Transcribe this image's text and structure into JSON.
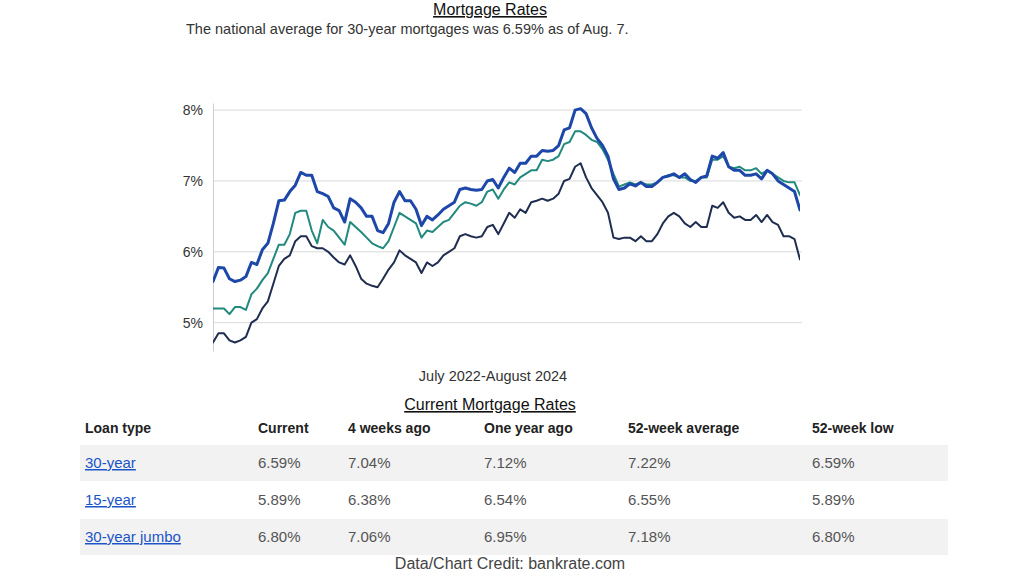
{
  "chart_data": {
    "type": "line",
    "title": "Mortgage Rates",
    "subtitle": "The national average for 30-year mortgages was 6.59% as of Aug. 7.",
    "x_label": "July 2022-August 2024",
    "categories": [
      null,
      null,
      null,
      null,
      null,
      null,
      null,
      null,
      null,
      null,
      null,
      null,
      null,
      null,
      null,
      null,
      null,
      null,
      null,
      null,
      null,
      null,
      null,
      null,
      null,
      null,
      null,
      null,
      null,
      null,
      null,
      null,
      null,
      null,
      null,
      null,
      null,
      null,
      null,
      null,
      null,
      null,
      null,
      null,
      null,
      null,
      null,
      null,
      null,
      null,
      null,
      null,
      null,
      null,
      null,
      null,
      null,
      null,
      null,
      null,
      null,
      null,
      null,
      null,
      null,
      null,
      null,
      null,
      null,
      null,
      null,
      null,
      null,
      null,
      null,
      null,
      null,
      null,
      null,
      null,
      null,
      null,
      null,
      null,
      null,
      null,
      null,
      null,
      null,
      null,
      null,
      null,
      null,
      null,
      null,
      null,
      null,
      null,
      null,
      null,
      null,
      null,
      null,
      null,
      null,
      null,
      null,
      null
    ],
    "series": [
      {
        "color": "#1d47a8",
        "values": [
          5.58,
          5.78,
          5.77,
          5.62,
          5.58,
          5.6,
          5.65,
          5.85,
          5.82,
          6.03,
          6.12,
          6.4,
          6.72,
          6.73,
          6.85,
          6.94,
          7.12,
          7.08,
          7.08,
          6.85,
          6.82,
          6.78,
          6.62,
          6.58,
          6.42,
          6.75,
          6.7,
          6.62,
          6.5,
          6.5,
          6.3,
          6.27,
          6.4,
          6.7,
          6.85,
          6.72,
          6.72,
          6.6,
          6.37,
          6.5,
          6.45,
          6.52,
          6.6,
          6.65,
          6.7,
          6.88,
          6.9,
          6.88,
          6.87,
          6.88,
          7.0,
          7.02,
          6.9,
          7.05,
          7.18,
          7.12,
          7.25,
          7.25,
          7.35,
          7.35,
          7.43,
          7.42,
          7.43,
          7.5,
          7.72,
          7.75,
          8.0,
          8.02,
          7.95,
          7.75,
          7.6,
          7.5,
          7.35,
          7.03,
          6.88,
          6.9,
          6.96,
          6.93,
          6.98,
          6.92,
          6.92,
          6.98,
          7.05,
          7.07,
          7.1,
          7.05,
          7.1,
          7.02,
          6.98,
          7.05,
          7.07,
          7.35,
          7.32,
          7.4,
          7.2,
          7.15,
          7.15,
          7.08,
          7.08,
          7.1,
          7.03,
          7.15,
          7.1,
          7.0,
          6.95,
          6.9,
          6.85,
          6.59
        ]
      },
      {
        "color": "#21897e",
        "values": [
          5.2,
          5.2,
          5.2,
          5.12,
          5.22,
          5.22,
          5.18,
          5.4,
          5.48,
          5.6,
          5.7,
          5.9,
          6.1,
          6.1,
          6.25,
          6.55,
          6.58,
          6.58,
          6.3,
          6.12,
          6.45,
          6.35,
          6.3,
          6.2,
          6.1,
          6.42,
          6.35,
          6.28,
          6.2,
          6.12,
          6.08,
          6.05,
          6.15,
          6.35,
          6.55,
          6.5,
          6.45,
          6.4,
          6.2,
          6.3,
          6.28,
          6.35,
          6.42,
          6.45,
          6.55,
          6.65,
          6.7,
          6.68,
          6.65,
          6.7,
          6.85,
          6.88,
          6.75,
          6.88,
          6.98,
          6.95,
          7.05,
          7.1,
          7.15,
          7.15,
          7.3,
          7.28,
          7.3,
          7.35,
          7.52,
          7.55,
          7.7,
          7.7,
          7.65,
          7.58,
          7.55,
          7.45,
          7.3,
          7.1,
          6.92,
          6.95,
          6.98,
          6.95,
          6.98,
          6.95,
          6.95,
          6.98,
          7.05,
          7.08,
          7.08,
          7.05,
          7.05,
          7.0,
          7.0,
          7.05,
          7.05,
          7.3,
          7.3,
          7.35,
          7.2,
          7.18,
          7.2,
          7.15,
          7.15,
          7.18,
          7.1,
          7.15,
          7.1,
          7.05,
          7.0,
          6.98,
          6.98,
          6.8
        ]
      },
      {
        "color": "#1e2d50",
        "values": [
          4.72,
          4.85,
          4.85,
          4.75,
          4.72,
          4.75,
          4.8,
          5.0,
          5.05,
          5.2,
          5.3,
          5.55,
          5.8,
          5.9,
          5.95,
          6.15,
          6.22,
          6.22,
          6.08,
          6.05,
          6.05,
          6.0,
          5.92,
          5.85,
          5.82,
          5.95,
          5.8,
          5.62,
          5.55,
          5.52,
          5.5,
          5.62,
          5.75,
          5.85,
          6.02,
          5.95,
          5.9,
          5.85,
          5.7,
          5.85,
          5.8,
          5.85,
          5.95,
          6.0,
          6.05,
          6.22,
          6.25,
          6.22,
          6.2,
          6.22,
          6.35,
          6.38,
          6.25,
          6.4,
          6.55,
          6.48,
          6.6,
          6.55,
          6.7,
          6.72,
          6.75,
          6.72,
          6.75,
          6.82,
          7.0,
          7.03,
          7.2,
          7.25,
          7.05,
          6.9,
          6.8,
          6.7,
          6.55,
          6.2,
          6.18,
          6.2,
          6.2,
          6.15,
          6.22,
          6.15,
          6.15,
          6.25,
          6.4,
          6.5,
          6.55,
          6.5,
          6.4,
          6.35,
          6.42,
          6.35,
          6.35,
          6.65,
          6.62,
          6.7,
          6.55,
          6.48,
          6.5,
          6.45,
          6.45,
          6.52,
          6.42,
          6.52,
          6.42,
          6.38,
          6.22,
          6.22,
          6.18,
          5.89
        ]
      }
    ],
    "ylim": [
      4.6,
      8.1
    ],
    "yticks": [
      {
        "value": 5,
        "label": "5%"
      },
      {
        "value": 6,
        "label": "6%"
      },
      {
        "value": 7,
        "label": "7%"
      },
      {
        "value": 8,
        "label": "8%"
      }
    ],
    "grid": true,
    "tick_labels": "y"
  },
  "table": {
    "title": "Current Mortgage Rates",
    "header": [
      "Loan type",
      "Current",
      "4 weeks ago",
      "One year ago",
      "52-week average",
      "52-week low"
    ],
    "rows": [
      [
        "30-year",
        "6.59%",
        "7.04%",
        "7.12%",
        "7.22%",
        "6.59%"
      ],
      [
        "15-year",
        "5.89%",
        "6.38%",
        "6.54%",
        "6.55%",
        "5.89%"
      ],
      [
        "30-year jumbo",
        "6.80%",
        "7.06%",
        "6.95%",
        "7.18%",
        "6.80%"
      ]
    ]
  },
  "credit": "Data/Chart Credit: bankrate.com"
}
